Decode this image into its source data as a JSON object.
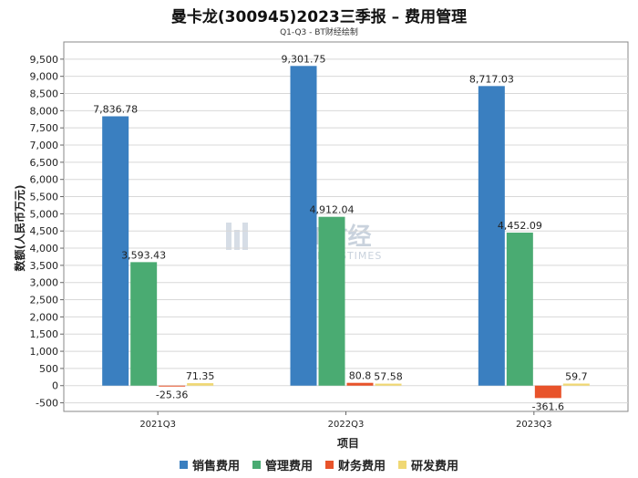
{
  "chart_data": {
    "type": "bar",
    "title": "曼卡龙(300945)2023三季报 – 费用管理",
    "subtitle": "Q1-Q3 - BT财经绘制",
    "xlabel": "项目",
    "ylabel": "数额(人民币万元)",
    "categories": [
      "2021Q3",
      "2022Q3",
      "2023Q3"
    ],
    "ylim": [
      -750,
      10000
    ],
    "yticks": [
      -500,
      0,
      500,
      1000,
      1500,
      2000,
      2500,
      3000,
      3500,
      4000,
      4500,
      5000,
      5500,
      6000,
      6500,
      7000,
      7500,
      8000,
      8500,
      9000,
      9500
    ],
    "ytick_labels": [
      "-500",
      "0",
      "500",
      "1,000",
      "1,500",
      "2,000",
      "2,500",
      "3,000",
      "3,500",
      "4,000",
      "4,500",
      "5,000",
      "5,500",
      "6,000",
      "6,500",
      "7,000",
      "7,500",
      "8,000",
      "8,500",
      "9,000",
      "9,500"
    ],
    "series": [
      {
        "name": "销售费用",
        "color": "#3a7fc0",
        "values": [
          7836.78,
          9301.75,
          8717.03
        ],
        "labels": [
          "7,836.78",
          "9,301.75",
          "8,717.03"
        ]
      },
      {
        "name": "管理费用",
        "color": "#4aab72",
        "values": [
          3593.43,
          4912.04,
          4452.09
        ],
        "labels": [
          "3,593.43",
          "4,912.04",
          "4,452.09"
        ]
      },
      {
        "name": "财务费用",
        "color": "#e8532a",
        "values": [
          -25.36,
          80.8,
          -361.6
        ],
        "labels": [
          "-25.36",
          "80.8",
          "-361.6"
        ]
      },
      {
        "name": "研发费用",
        "color": "#f0d874",
        "values": [
          71.35,
          57.58,
          59.7
        ],
        "labels": [
          "71.35",
          "57.58",
          "59.7"
        ]
      }
    ],
    "grid": true,
    "legend": "bottom"
  },
  "watermark": {
    "brand": "BT财经",
    "tagline": "BUSINESSTIMES"
  }
}
